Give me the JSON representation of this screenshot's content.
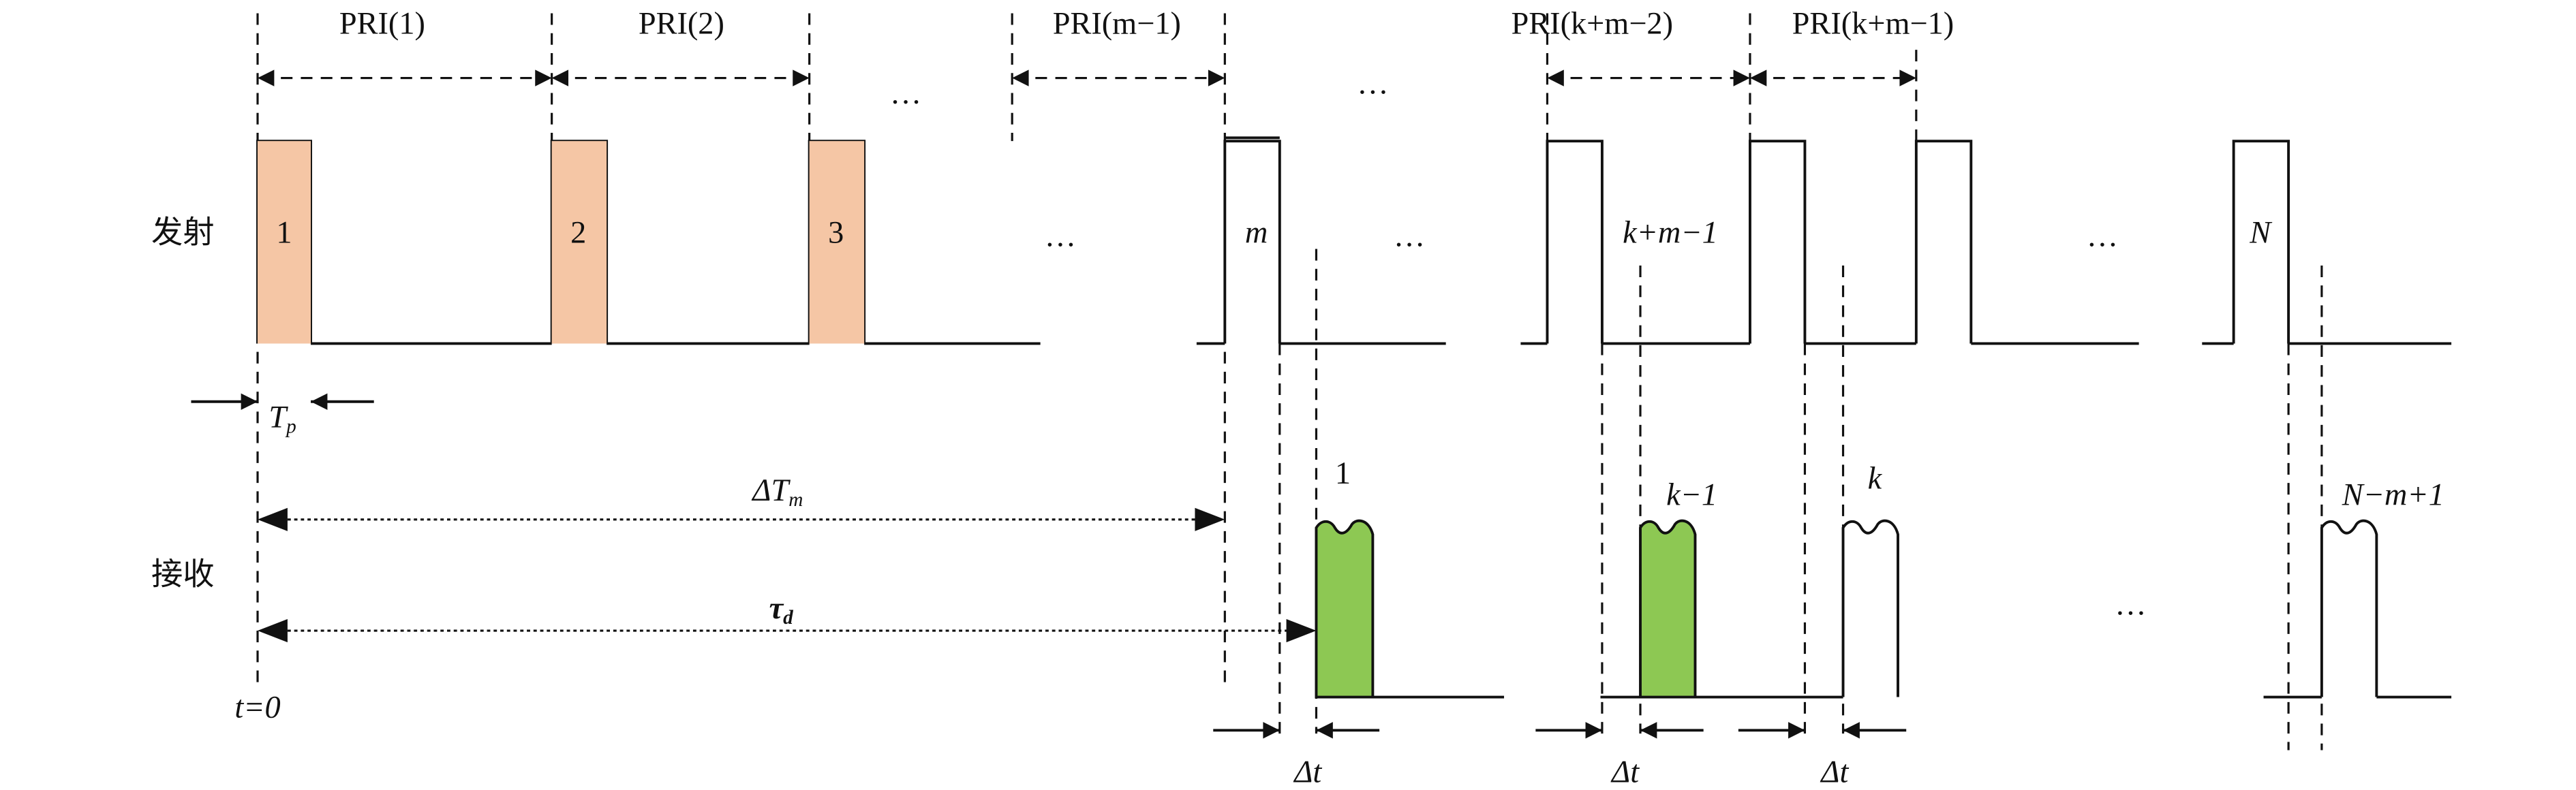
{
  "rows": {
    "transmit": "发射",
    "receive": "接收"
  },
  "intervals": [
    "PRI(1)",
    "PRI(2)",
    "PRI(m−1)",
    "PRI(k+m−2)",
    "PRI(k+m−1)"
  ],
  "transmit_pulses": [
    "1",
    "2",
    "3",
    "m",
    "k+m−1",
    "N"
  ],
  "receive_pulses": [
    "1",
    "k−1",
    "k",
    "N−m+1"
  ],
  "ellipses": [
    "…",
    "…",
    "…",
    "…",
    "…",
    "…"
  ],
  "annotations": {
    "Tp": {
      "base": "T",
      "sub": "p"
    },
    "delta_Tm": {
      "base": "ΔT",
      "sub": "m"
    },
    "tau_d": {
      "base": "τ",
      "sub": "d"
    },
    "t0": "t=0",
    "delta_t": [
      "Δt",
      "Δt",
      "Δt"
    ]
  }
}
